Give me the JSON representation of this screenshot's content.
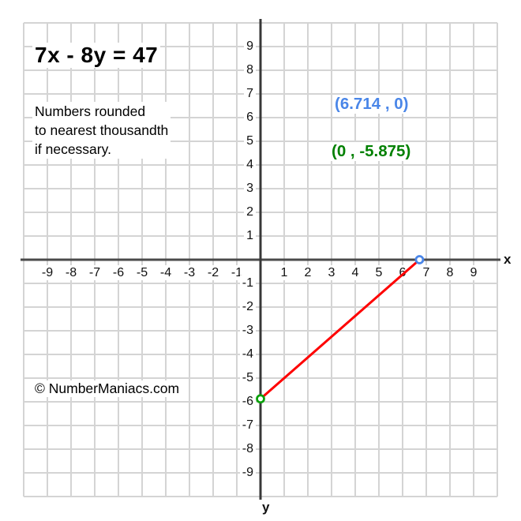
{
  "header": {
    "equation": "7x - 8y = 47",
    "note_line1": "Numbers rounded",
    "note_line2": "to nearest thousandth",
    "note_line3": "if necessary."
  },
  "watermark": "© NumberManiacs.com",
  "colors": {
    "background": "#ffffff",
    "grid": "#d4d4d4",
    "x_axis": "#4a4a4a",
    "y_axis": "#383838",
    "line": "#fe0000",
    "x_intercept_blue": "#4a86e8",
    "y_intercept_text_green": "#008000",
    "y_intercept_point_green": "#0aa00a",
    "tick_text": "#111111"
  },
  "chart_data": {
    "type": "line",
    "title": "7x - 8y = 47",
    "subtitle": "Numbers rounded to nearest thousandth if necessary.",
    "xlabel": "x",
    "ylabel": "y",
    "xlim": [
      -10,
      10
    ],
    "ylim": [
      -10,
      10
    ],
    "grid": true,
    "x_ticks": [
      -9,
      -8,
      -7,
      -6,
      -5,
      -4,
      -3,
      -2,
      -1,
      1,
      2,
      3,
      4,
      5,
      6,
      7,
      8,
      9
    ],
    "y_ticks": [
      -9,
      -8,
      -7,
      -6,
      -5,
      -4,
      -3,
      -2,
      -1,
      1,
      2,
      3,
      4,
      5,
      6,
      7,
      8,
      9
    ],
    "series": [
      {
        "name": "line-segment-between-intercepts",
        "points": [
          [
            0,
            -5.875
          ],
          [
            6.714,
            0
          ]
        ],
        "color": "#fe0000"
      }
    ],
    "x_intercept": {
      "x": 6.714,
      "y": 0,
      "label": "(6.714 , 0)",
      "label_color": "#4a86e8",
      "point_color": "#4a86e8"
    },
    "y_intercept": {
      "x": 0,
      "y": -5.875,
      "label": "(0 , -5.875)",
      "label_color": "#008000",
      "point_color": "#0aa00a"
    },
    "legend": null
  }
}
